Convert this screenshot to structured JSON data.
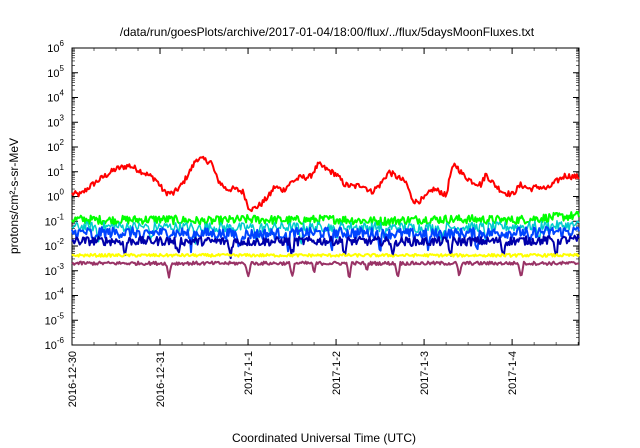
{
  "chart_data": {
    "type": "line",
    "title": "/data/run/goesPlots/archive/2017-01-04/18:00/flux/../flux/5daysMoonFluxes.txt",
    "xlabel": "Coordinated Universal Time (UTC)",
    "ylabel": "protons/cm²-s-sr-MeV",
    "yscale": "log",
    "ylim": [
      1e-06,
      1000000.0
    ],
    "y_ticks": [
      {
        "base": "10",
        "exp": "-6"
      },
      {
        "base": "10",
        "exp": "-5"
      },
      {
        "base": "10",
        "exp": "-4"
      },
      {
        "base": "10",
        "exp": "-3"
      },
      {
        "base": "10",
        "exp": "-2"
      },
      {
        "base": "10",
        "exp": "-1"
      },
      {
        "base": "10",
        "exp": "0"
      },
      {
        "base": "10",
        "exp": "1"
      },
      {
        "base": "10",
        "exp": "2"
      },
      {
        "base": "10",
        "exp": "3"
      },
      {
        "base": "10",
        "exp": "4"
      },
      {
        "base": "10",
        "exp": "5"
      },
      {
        "base": "10",
        "exp": "6"
      }
    ],
    "x_ticks": [
      "2016-12-30",
      "2016-12-31",
      "2017-1-1",
      "2017-1-2",
      "2017-1-3",
      "2017-1-4"
    ],
    "xlim_days": [
      0,
      5.76
    ],
    "grid": false,
    "legend": "none",
    "series": [
      {
        "color": "#ff0000",
        "width": 2,
        "noise": 0.12,
        "dips": [],
        "points": [
          [
            0,
            1.3
          ],
          [
            0.1,
            1.2
          ],
          [
            0.2,
            2.5
          ],
          [
            0.35,
            6
          ],
          [
            0.5,
            13
          ],
          [
            0.65,
            18
          ],
          [
            0.8,
            10
          ],
          [
            0.95,
            5
          ],
          [
            1.05,
            1.5
          ],
          [
            1.15,
            1.3
          ],
          [
            1.25,
            3
          ],
          [
            1.35,
            12
          ],
          [
            1.42,
            35
          ],
          [
            1.5,
            30
          ],
          [
            1.58,
            25
          ],
          [
            1.65,
            5
          ],
          [
            1.75,
            2
          ],
          [
            1.85,
            2
          ],
          [
            1.95,
            1.5
          ],
          [
            2.0,
            0.4
          ],
          [
            2.05,
            0.3
          ],
          [
            2.15,
            0.5
          ],
          [
            2.25,
            1.2
          ],
          [
            2.3,
            2.5
          ],
          [
            2.4,
            1.8
          ],
          [
            2.5,
            4
          ],
          [
            2.6,
            6
          ],
          [
            2.7,
            6
          ],
          [
            2.8,
            20
          ],
          [
            2.9,
            12
          ],
          [
            3.0,
            8
          ],
          [
            3.1,
            3
          ],
          [
            3.2,
            2.5
          ],
          [
            3.3,
            3
          ],
          [
            3.4,
            1.5
          ],
          [
            3.5,
            3
          ],
          [
            3.6,
            10
          ],
          [
            3.7,
            6
          ],
          [
            3.8,
            3.5
          ],
          [
            3.85,
            1.0
          ],
          [
            3.9,
            0.6
          ],
          [
            4.0,
            0.8
          ],
          [
            4.1,
            2
          ],
          [
            4.2,
            1.5
          ],
          [
            4.25,
            1.0
          ],
          [
            4.3,
            8
          ],
          [
            4.35,
            20
          ],
          [
            4.45,
            7
          ],
          [
            4.55,
            4
          ],
          [
            4.65,
            3
          ],
          [
            4.7,
            8
          ],
          [
            4.8,
            3
          ],
          [
            4.9,
            1.5
          ],
          [
            5.0,
            1.2
          ],
          [
            5.1,
            3
          ],
          [
            5.2,
            2
          ],
          [
            5.3,
            2.5
          ],
          [
            5.4,
            2
          ],
          [
            5.5,
            4
          ],
          [
            5.6,
            7
          ],
          [
            5.76,
            6
          ]
        ]
      },
      {
        "color": "#00ff00",
        "width": 2,
        "noise": 0.18,
        "dips": [],
        "points": [
          [
            0,
            0.12
          ],
          [
            0.5,
            0.11
          ],
          [
            1.0,
            0.12
          ],
          [
            1.5,
            0.1
          ],
          [
            2.0,
            0.12
          ],
          [
            2.5,
            0.11
          ],
          [
            3.0,
            0.12
          ],
          [
            3.5,
            0.1
          ],
          [
            4.0,
            0.12
          ],
          [
            4.5,
            0.12
          ],
          [
            5.0,
            0.11
          ],
          [
            5.76,
            0.17
          ]
        ]
      },
      {
        "color": "#00cccc",
        "width": 1.5,
        "noise": 0.2,
        "dips": [
          0.3,
          0.9,
          1.4,
          2.1,
          2.6,
          3.0,
          3.55,
          4.2,
          4.7,
          5.3
        ],
        "points": [
          [
            0,
            0.06
          ],
          [
            1.0,
            0.06
          ],
          [
            2.0,
            0.055
          ],
          [
            3.0,
            0.06
          ],
          [
            4.0,
            0.055
          ],
          [
            5.0,
            0.06
          ],
          [
            5.76,
            0.07
          ]
        ]
      },
      {
        "color": "#0044ff",
        "width": 2,
        "noise": 0.22,
        "dips": [
          0.25,
          0.8,
          1.35,
          1.9,
          2.45,
          2.95,
          3.5,
          4.05,
          4.6,
          5.2
        ],
        "points": [
          [
            0,
            0.035
          ],
          [
            1.0,
            0.035
          ],
          [
            2.0,
            0.03
          ],
          [
            3.0,
            0.035
          ],
          [
            4.0,
            0.03
          ],
          [
            5.0,
            0.035
          ],
          [
            5.76,
            0.04
          ]
        ]
      },
      {
        "color": "#0000aa",
        "width": 2,
        "noise": 0.18,
        "dips": [
          0.6,
          1.2,
          1.8,
          2.5,
          3.1,
          3.65,
          4.3,
          4.9,
          5.5
        ],
        "points": [
          [
            0,
            0.016
          ],
          [
            1.0,
            0.016
          ],
          [
            2.0,
            0.015
          ],
          [
            3.0,
            0.016
          ],
          [
            4.0,
            0.015
          ],
          [
            5.0,
            0.016
          ],
          [
            5.76,
            0.018
          ]
        ]
      },
      {
        "color": "#ffff00",
        "width": 2,
        "noise": 0.06,
        "dips": [],
        "points": [
          [
            0,
            0.0042
          ],
          [
            1.0,
            0.0042
          ],
          [
            2.0,
            0.0042
          ],
          [
            3.0,
            0.0042
          ],
          [
            4.0,
            0.0042
          ],
          [
            5.0,
            0.0042
          ],
          [
            5.76,
            0.0042
          ]
        ]
      },
      {
        "color": "#993366",
        "width": 2,
        "noise": 0.07,
        "dips": [
          1.1,
          2.0,
          2.5,
          3.15,
          3.7,
          4.4,
          5.1
        ],
        "deep_dips": [
          [
            2.75,
            0.0006
          ],
          [
            3.35,
            0.0007
          ]
        ],
        "points": [
          [
            0,
            0.002
          ],
          [
            1.0,
            0.002
          ],
          [
            2.0,
            0.002
          ],
          [
            3.0,
            0.002
          ],
          [
            4.0,
            0.002
          ],
          [
            5.0,
            0.002
          ],
          [
            5.76,
            0.002
          ]
        ]
      }
    ]
  }
}
